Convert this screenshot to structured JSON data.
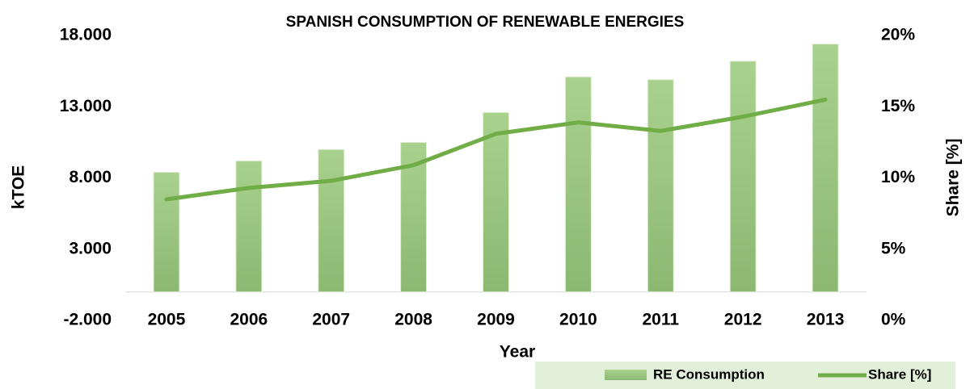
{
  "chart_data": {
    "type": "bar_line",
    "title": "SPANISH CONSUMPTION OF RENEWABLE ENERGIES",
    "x_label": "Year",
    "y_label": "kTOE",
    "y2_label": "Share [%]",
    "categories": [
      "2005",
      "2006",
      "2007",
      "2008",
      "2009",
      "2010",
      "2011",
      "2012",
      "2013"
    ],
    "series": [
      {
        "name": "RE Consumption",
        "type": "bar",
        "color": "#a9d18e",
        "values": [
          8400,
          9200,
          10000,
          10500,
          12600,
          15100,
          14900,
          16200,
          17400
        ]
      },
      {
        "name": "Share [%]",
        "type": "line",
        "axis": "y2",
        "color": "#70ad47",
        "values": [
          8.5,
          9.3,
          9.8,
          10.9,
          13.1,
          13.9,
          13.3,
          14.3,
          15.5
        ]
      }
    ],
    "ylim": [
      -2000,
      18000
    ],
    "yticks": [
      {
        "value": -2000,
        "label": "-2.000"
      },
      {
        "value": 3000,
        "label": "3.000"
      },
      {
        "value": 8000,
        "label": "8.000"
      },
      {
        "value": 13000,
        "label": "13.000"
      },
      {
        "value": 18000,
        "label": "18.000"
      }
    ],
    "y2lim": [
      0,
      20
    ],
    "y2ticks": [
      {
        "value": 0,
        "label": "0%"
      },
      {
        "value": 5,
        "label": "5%"
      },
      {
        "value": 10,
        "label": "10%"
      },
      {
        "value": 15,
        "label": "15%"
      },
      {
        "value": 20,
        "label": "20%"
      }
    ],
    "legend": "bottom-right"
  }
}
